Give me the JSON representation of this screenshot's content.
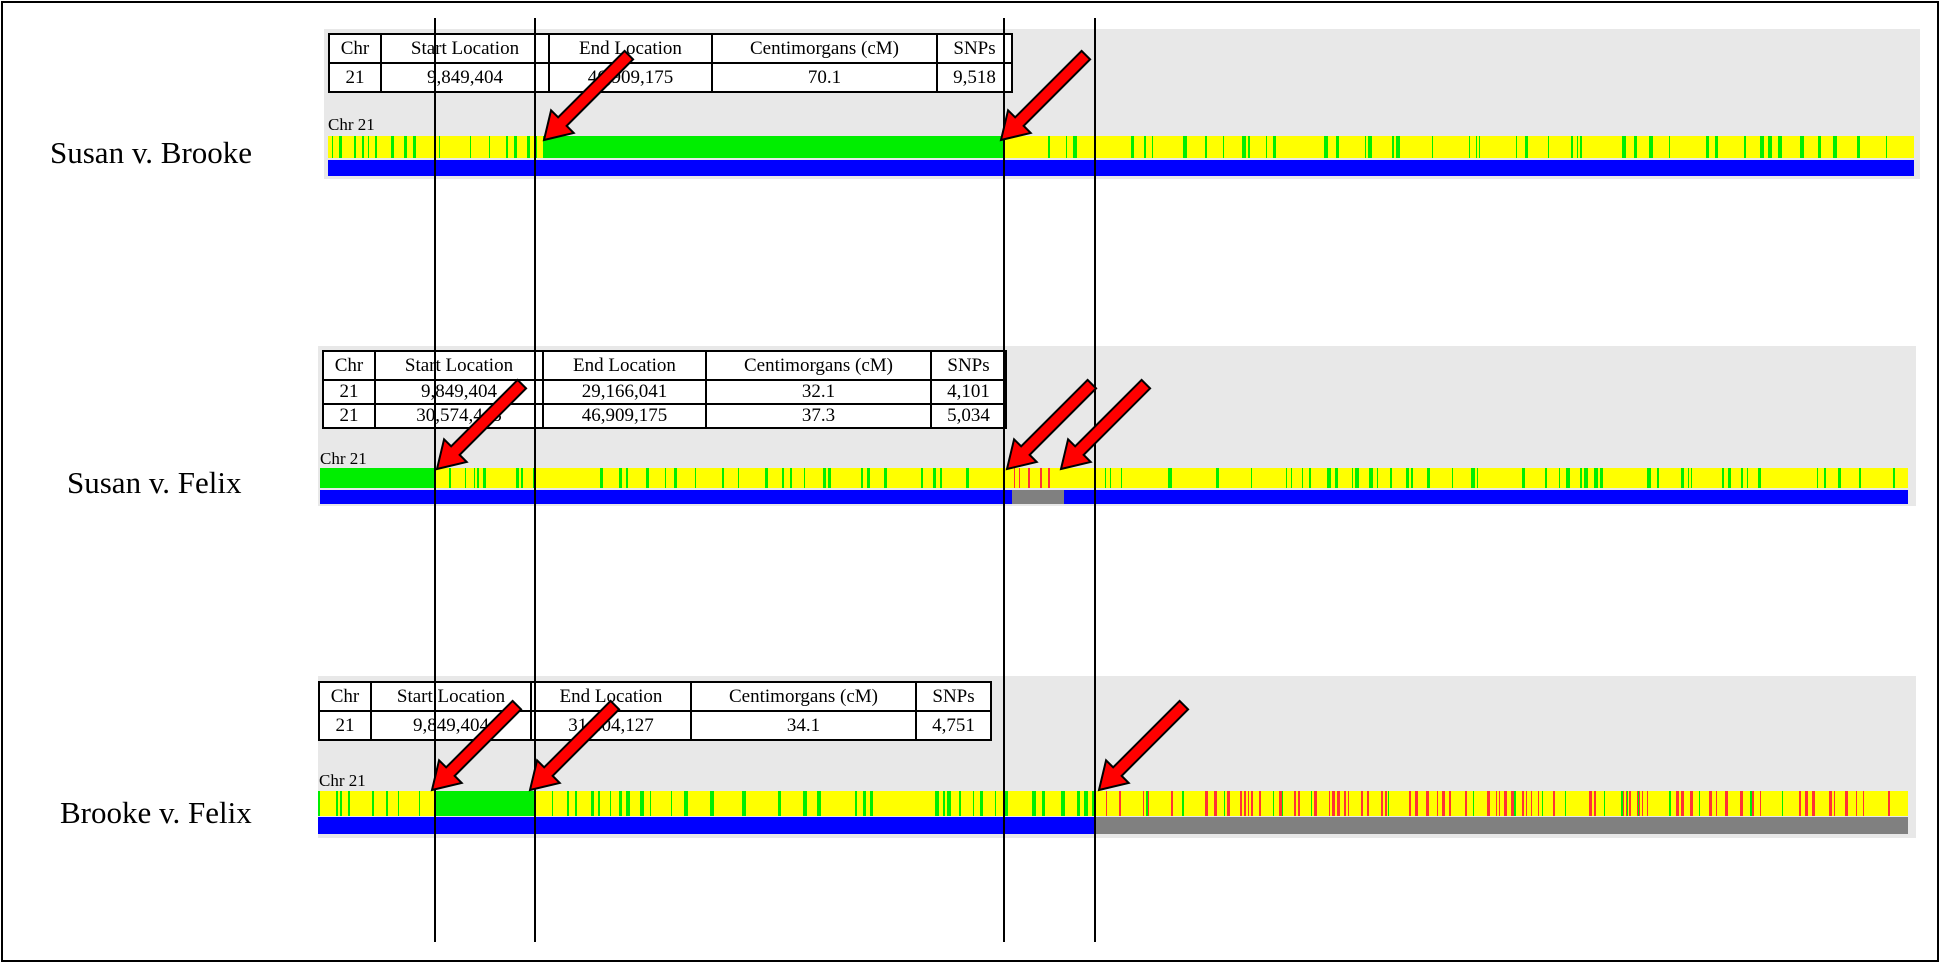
{
  "comparisons": [
    {
      "title": "Susan v. Brooke",
      "chr_label": "Chr 21",
      "headers": [
        "Chr",
        "Start Location",
        "End Location",
        "Centimorgans (cM)",
        "SNPs"
      ],
      "rows": [
        [
          "21",
          "9,849,404",
          "46,909,175",
          "70.1",
          "9,518"
        ]
      ]
    },
    {
      "title": "Susan v. Felix",
      "chr_label": "Chr 21",
      "headers": [
        "Chr",
        "Start Location",
        "End Location",
        "Centimorgans (cM)",
        "SNPs"
      ],
      "rows": [
        [
          "21",
          "9,849,404",
          "29,166,041",
          "32.1",
          "4,101"
        ],
        [
          "21",
          "30,574,443",
          "46,909,175",
          "37.3",
          "5,034"
        ]
      ]
    },
    {
      "title": "Brooke v. Felix",
      "chr_label": "Chr 21",
      "headers": [
        "Chr",
        "Start Location",
        "End Location",
        "Centimorgans (cM)",
        "SNPs"
      ],
      "rows": [
        [
          "21",
          "9,849,404",
          "31,404,127",
          "34.1",
          "4,751"
        ]
      ]
    }
  ],
  "colors": {
    "full_match": "#00ee00",
    "half_match": "#ffff00",
    "no_match": "#ff3333",
    "segment_match": "#0000ff",
    "no_segment": "#808080",
    "panel": "#e8e8e8",
    "arrow": "#ff0000"
  }
}
